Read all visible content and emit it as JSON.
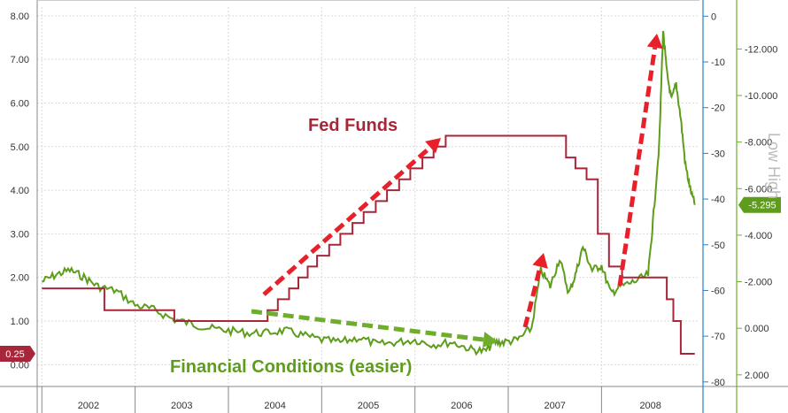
{
  "chart_data": {
    "type": "line",
    "x_years": [
      "2002",
      "2003",
      "2004",
      "2005",
      "2006",
      "2007",
      "2008"
    ],
    "left_axis": {
      "ticks": [
        "0.00",
        "1.00",
        "2.00",
        "3.00",
        "4.00",
        "5.00",
        "6.00",
        "7.00",
        "8.00"
      ],
      "ylim": [
        -0.5,
        8.2
      ]
    },
    "mid_axis": {
      "ticks": [
        "0",
        "-10",
        "-20",
        "-30",
        "-40",
        "-50",
        "-60",
        "-70",
        "-80"
      ],
      "ylim": [
        -81,
        2
      ]
    },
    "right_axis": {
      "ticks": [
        "-12.000",
        "-10.000",
        "-8.000",
        "-6.000",
        "-4.000",
        "-2.000",
        "0.000",
        "2.000"
      ],
      "ylim": [
        2.5,
        -13.8
      ],
      "side_text": "Low  High"
    },
    "series": [
      {
        "name": "Fed Funds",
        "color": "#a8263a",
        "axis": "left",
        "last_value_label": "0.25",
        "step_points": [
          [
            2002.0,
            1.75
          ],
          [
            2002.67,
            1.75
          ],
          [
            2002.67,
            1.25
          ],
          [
            2003.42,
            1.25
          ],
          [
            2003.42,
            1.0
          ],
          [
            2004.42,
            1.0
          ],
          [
            2004.42,
            1.25
          ],
          [
            2004.53,
            1.25
          ],
          [
            2004.53,
            1.5
          ],
          [
            2004.65,
            1.5
          ],
          [
            2004.65,
            1.75
          ],
          [
            2004.75,
            1.75
          ],
          [
            2004.75,
            2.0
          ],
          [
            2004.85,
            2.0
          ],
          [
            2004.85,
            2.25
          ],
          [
            2004.95,
            2.25
          ],
          [
            2004.95,
            2.5
          ],
          [
            2005.08,
            2.5
          ],
          [
            2005.08,
            2.75
          ],
          [
            2005.2,
            2.75
          ],
          [
            2005.2,
            3.0
          ],
          [
            2005.33,
            3.0
          ],
          [
            2005.33,
            3.25
          ],
          [
            2005.45,
            3.25
          ],
          [
            2005.45,
            3.5
          ],
          [
            2005.58,
            3.5
          ],
          [
            2005.58,
            3.75
          ],
          [
            2005.7,
            3.75
          ],
          [
            2005.7,
            4.0
          ],
          [
            2005.83,
            4.0
          ],
          [
            2005.83,
            4.25
          ],
          [
            2005.95,
            4.25
          ],
          [
            2005.95,
            4.5
          ],
          [
            2006.08,
            4.5
          ],
          [
            2006.08,
            4.75
          ],
          [
            2006.2,
            4.75
          ],
          [
            2006.2,
            5.0
          ],
          [
            2006.33,
            5.0
          ],
          [
            2006.33,
            5.25
          ],
          [
            2007.62,
            5.25
          ],
          [
            2007.62,
            4.75
          ],
          [
            2007.72,
            4.75
          ],
          [
            2007.72,
            4.5
          ],
          [
            2007.84,
            4.5
          ],
          [
            2007.84,
            4.25
          ],
          [
            2007.96,
            4.25
          ],
          [
            2007.96,
            3.0
          ],
          [
            2008.08,
            3.0
          ],
          [
            2008.08,
            2.25
          ],
          [
            2008.22,
            2.25
          ],
          [
            2008.22,
            2.0
          ],
          [
            2008.7,
            2.0
          ],
          [
            2008.7,
            1.5
          ],
          [
            2008.77,
            1.5
          ],
          [
            2008.77,
            1.0
          ],
          [
            2008.85,
            1.0
          ],
          [
            2008.85,
            0.25
          ],
          [
            2009.0,
            0.25
          ]
        ]
      },
      {
        "name": "Financial Conditions (easier)",
        "color": "#5e9d1c",
        "axis": "right",
        "last_value_label": "-5.295",
        "points": [
          [
            2002.0,
            -2.0
          ],
          [
            2002.15,
            -2.3
          ],
          [
            2002.3,
            -2.5
          ],
          [
            2002.45,
            -2.2
          ],
          [
            2002.6,
            -1.8
          ],
          [
            2002.8,
            -1.6
          ],
          [
            2003.0,
            -1.0
          ],
          [
            2003.2,
            -0.8
          ],
          [
            2003.4,
            -0.4
          ],
          [
            2003.6,
            -0.2
          ],
          [
            2003.8,
            0.0
          ],
          [
            2004.0,
            0.1
          ],
          [
            2004.2,
            0.2
          ],
          [
            2004.4,
            0.2
          ],
          [
            2004.6,
            0.1
          ],
          [
            2004.8,
            0.3
          ],
          [
            2005.0,
            0.5
          ],
          [
            2005.2,
            0.6
          ],
          [
            2005.4,
            0.4
          ],
          [
            2005.6,
            0.7
          ],
          [
            2005.8,
            0.6
          ],
          [
            2006.0,
            0.5
          ],
          [
            2006.2,
            0.7
          ],
          [
            2006.4,
            0.6
          ],
          [
            2006.6,
            0.9
          ],
          [
            2006.75,
            1.0
          ],
          [
            2006.85,
            0.6
          ],
          [
            2006.95,
            0.6
          ],
          [
            2007.1,
            0.5
          ],
          [
            2007.25,
            0.0
          ],
          [
            2007.35,
            -2.5
          ],
          [
            2007.45,
            -1.8
          ],
          [
            2007.55,
            -3.0
          ],
          [
            2007.65,
            -1.5
          ],
          [
            2007.72,
            -2.3
          ],
          [
            2007.8,
            -3.5
          ],
          [
            2007.9,
            -2.5
          ],
          [
            2008.0,
            -2.7
          ],
          [
            2008.1,
            -1.5
          ],
          [
            2008.2,
            -1.8
          ],
          [
            2008.35,
            -2.0
          ],
          [
            2008.5,
            -2.3
          ],
          [
            2008.55,
            -4.5
          ],
          [
            2008.62,
            -8.0
          ],
          [
            2008.66,
            -12.8
          ],
          [
            2008.7,
            -11.0
          ],
          [
            2008.75,
            -9.8
          ],
          [
            2008.8,
            -10.5
          ],
          [
            2008.85,
            -9.0
          ],
          [
            2008.9,
            -7.0
          ],
          [
            2008.95,
            -6.0
          ],
          [
            2009.0,
            -5.3
          ]
        ]
      }
    ],
    "annotations": [
      {
        "text": "Fed Funds",
        "color": "#a8263a"
      },
      {
        "text": "Financial Conditions (easier)",
        "color": "#5e9d1c"
      }
    ],
    "xlim": [
      2001.95,
      2009.05
    ],
    "grid": true
  }
}
